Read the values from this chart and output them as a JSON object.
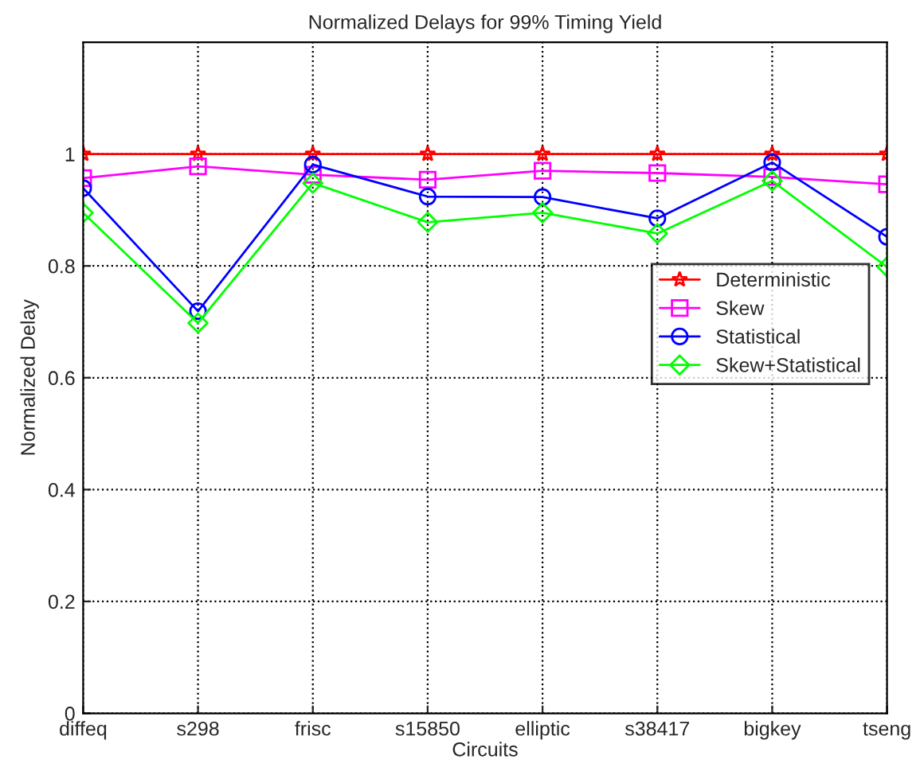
{
  "chart_data": {
    "type": "line",
    "title": "Normalized Delays for 99% Timing Yield",
    "xlabel": "Circuits",
    "ylabel": "Normalized Delay",
    "categories": [
      "diffeq",
      "s298",
      "frisc",
      "s15850",
      "elliptic",
      "s38417",
      "bigkey",
      "tseng"
    ],
    "series": [
      {
        "name": "Deterministic",
        "color": "#ff0000",
        "marker": "star",
        "values": [
          1,
          1,
          1,
          1,
          1,
          1,
          1,
          1
        ]
      },
      {
        "name": "Skew",
        "color": "#ff00ff",
        "marker": "square",
        "values": [
          0.957,
          0.978,
          0.963,
          0.954,
          0.97,
          0.966,
          0.959,
          0.946
        ]
      },
      {
        "name": "Statistical",
        "color": "#0000ff",
        "marker": "circle",
        "values": [
          0.939,
          0.719,
          0.981,
          0.924,
          0.923,
          0.885,
          0.985,
          0.852
        ]
      },
      {
        "name": "Skew+Statistical",
        "color": "#00ff00",
        "marker": "diamond",
        "values": [
          0.895,
          0.698,
          0.948,
          0.878,
          0.895,
          0.858,
          0.952,
          0.798
        ]
      }
    ],
    "ylim": [
      0,
      1.2
    ],
    "yticks": [
      0,
      0.2,
      0.4,
      0.6,
      0.8,
      1
    ],
    "grid": true,
    "legend": "right",
    "line_style": "solid"
  }
}
